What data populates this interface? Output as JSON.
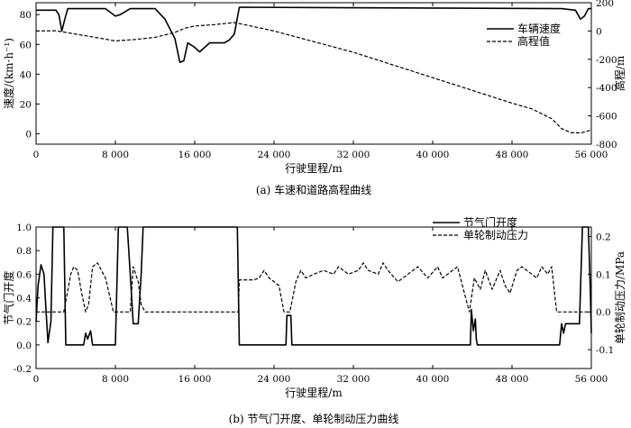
{
  "chart_data": [
    {
      "type": "line",
      "caption": "(a) 车速和道路高程曲线",
      "xlabel": "行驶里程/m",
      "ylabel": "速度/(km·h⁻¹)",
      "y2label": "高程/m",
      "xlim": [
        0,
        56000
      ],
      "ylim": [
        -7,
        88
      ],
      "y2lim": [
        -800,
        200
      ],
      "xticks": [
        0,
        8000,
        16000,
        24000,
        32000,
        40000,
        48000,
        56000
      ],
      "xtick_labels": [
        "0",
        "8 000",
        "16 000",
        "24 000",
        "32 000",
        "40 000",
        "48 000",
        "56 000"
      ],
      "yticks": [
        0,
        20,
        40,
        60,
        80
      ],
      "ytick_labels": [
        "0",
        "20",
        "40",
        "60",
        "80"
      ],
      "y2ticks": [
        200,
        0,
        -200,
        -400,
        -600,
        -800
      ],
      "y2tick_labels": [
        "200",
        "0",
        "-200",
        "-400",
        "-600",
        "-800"
      ],
      "legend_position": "top-right",
      "series": [
        {
          "name": "车辆速度",
          "axis": "left",
          "style": "solid",
          "points": [
            [
              0,
              83
            ],
            [
              2000,
              83
            ],
            [
              2300,
              80
            ],
            [
              2600,
              69
            ],
            [
              2900,
              77
            ],
            [
              3200,
              84
            ],
            [
              7000,
              84
            ],
            [
              8000,
              79
            ],
            [
              8500,
              80
            ],
            [
              9500,
              84
            ],
            [
              12000,
              84
            ],
            [
              13000,
              77
            ],
            [
              14000,
              64
            ],
            [
              14500,
              48
            ],
            [
              14900,
              49
            ],
            [
              15300,
              61
            ],
            [
              16000,
              58
            ],
            [
              16500,
              55
            ],
            [
              17000,
              58
            ],
            [
              17500,
              61
            ],
            [
              19000,
              61
            ],
            [
              19500,
              63
            ],
            [
              20000,
              67
            ],
            [
              20500,
              85
            ],
            [
              53000,
              84
            ],
            [
              54400,
              83
            ],
            [
              54900,
              77
            ],
            [
              55300,
              79
            ],
            [
              55700,
              84
            ],
            [
              56000,
              84
            ]
          ]
        },
        {
          "name": "高程值",
          "axis": "right",
          "style": "dashed",
          "points": [
            [
              0,
              0
            ],
            [
              2000,
              2
            ],
            [
              3000,
              -10
            ],
            [
              6000,
              -45
            ],
            [
              8000,
              -70
            ],
            [
              10000,
              -60
            ],
            [
              12000,
              -45
            ],
            [
              14000,
              -10
            ],
            [
              15000,
              20
            ],
            [
              16000,
              35
            ],
            [
              18000,
              45
            ],
            [
              20000,
              60
            ],
            [
              21000,
              45
            ],
            [
              24000,
              0
            ],
            [
              32000,
              -150
            ],
            [
              40000,
              -330
            ],
            [
              44000,
              -420
            ],
            [
              48000,
              -510
            ],
            [
              50000,
              -550
            ],
            [
              52000,
              -620
            ],
            [
              53000,
              -690
            ],
            [
              54000,
              -720
            ],
            [
              55000,
              -720
            ],
            [
              56000,
              -700
            ]
          ]
        }
      ]
    },
    {
      "type": "line",
      "caption": "(b) 节气门开度、单轮制动压力曲线",
      "xlabel": "行驶里程/m",
      "ylabel": "节气门开度",
      "y2label": "单轮制动压力/MPa",
      "xlim": [
        0,
        56000
      ],
      "ylim": [
        -0.2,
        1.0
      ],
      "y2lim": [
        -0.15,
        0.225
      ],
      "xticks": [
        0,
        8000,
        16000,
        24000,
        32000,
        40000,
        48000,
        56000
      ],
      "xtick_labels": [
        "0",
        "8 000",
        "16 000",
        "24 000",
        "32 000",
        "40 000",
        "48 000",
        "56 000"
      ],
      "yticks": [
        1.0,
        0.8,
        0.6,
        0.4,
        0.2,
        0.0,
        -0.2
      ],
      "ytick_labels": [
        "1.0",
        "0.8",
        "0.6",
        "0.4",
        "0.2",
        "0.0",
        "-0.2"
      ],
      "y2ticks": [
        0.2,
        0.1,
        0.0,
        -0.1
      ],
      "y2tick_labels": [
        "0.2",
        "0.1",
        "0.0",
        "-0.1"
      ],
      "legend_position": "top-right",
      "series": [
        {
          "name": "节气门开度",
          "axis": "left",
          "style": "solid",
          "points": [
            [
              0,
              0.2
            ],
            [
              200,
              0.5
            ],
            [
              500,
              0.68
            ],
            [
              800,
              0.6
            ],
            [
              1000,
              0.3
            ],
            [
              1200,
              0.02
            ],
            [
              1500,
              0.2
            ],
            [
              1700,
              1.0
            ],
            [
              2800,
              1.0
            ],
            [
              3000,
              0.0
            ],
            [
              4800,
              0.0
            ],
            [
              5000,
              0.1
            ],
            [
              5200,
              0.05
            ],
            [
              5500,
              0.12
            ],
            [
              5700,
              0.0
            ],
            [
              8000,
              0.0
            ],
            [
              8300,
              1.0
            ],
            [
              9200,
              1.0
            ],
            [
              9500,
              0.6
            ],
            [
              9800,
              0.18
            ],
            [
              10300,
              0.18
            ],
            [
              10600,
              0.6
            ],
            [
              10800,
              1.0
            ],
            [
              20300,
              1.0
            ],
            [
              20500,
              0.0
            ],
            [
              25200,
              0.0
            ],
            [
              25300,
              0.25
            ],
            [
              25700,
              0.25
            ],
            [
              25800,
              0.0
            ],
            [
              43800,
              0.0
            ],
            [
              43900,
              0.3
            ],
            [
              44100,
              0.12
            ],
            [
              44300,
              0.22
            ],
            [
              44400,
              0.05
            ],
            [
              44500,
              0.0
            ],
            [
              52800,
              0.0
            ],
            [
              53000,
              0.18
            ],
            [
              53200,
              0.1
            ],
            [
              53400,
              0.18
            ],
            [
              54800,
              0.18
            ],
            [
              55100,
              1.0
            ],
            [
              55700,
              1.0
            ],
            [
              55900,
              0.45
            ],
            [
              56000,
              0.1
            ]
          ]
        },
        {
          "name": "单轮制动压力",
          "axis": "right",
          "style": "dashed",
          "points": [
            [
              0,
              0.0
            ],
            [
              2800,
              0.0
            ],
            [
              3500,
              0.1
            ],
            [
              3800,
              0.12
            ],
            [
              4200,
              0.11
            ],
            [
              4600,
              0.05
            ],
            [
              5000,
              0.0
            ],
            [
              5300,
              0.02
            ],
            [
              5700,
              0.12
            ],
            [
              6200,
              0.13
            ],
            [
              7000,
              0.09
            ],
            [
              7800,
              0.0
            ],
            [
              9500,
              0.0
            ],
            [
              9800,
              0.12
            ],
            [
              10300,
              0.08
            ],
            [
              10600,
              0.02
            ],
            [
              11000,
              0.0
            ],
            [
              20400,
              0.0
            ],
            [
              20500,
              0.085
            ],
            [
              22000,
              0.085
            ],
            [
              22500,
              0.09
            ],
            [
              23000,
              0.11
            ],
            [
              23500,
              0.09
            ],
            [
              24500,
              0.07
            ],
            [
              25000,
              0.0
            ],
            [
              25600,
              0.0
            ],
            [
              26200,
              0.08
            ],
            [
              26700,
              0.11
            ],
            [
              27200,
              0.09
            ],
            [
              28000,
              0.1
            ],
            [
              29000,
              0.11
            ],
            [
              30000,
              0.1
            ],
            [
              30500,
              0.12
            ],
            [
              31500,
              0.1
            ],
            [
              32500,
              0.11
            ],
            [
              33000,
              0.13
            ],
            [
              33500,
              0.11
            ],
            [
              34500,
              0.1
            ],
            [
              35000,
              0.13
            ],
            [
              35500,
              0.11
            ],
            [
              36500,
              0.08
            ],
            [
              37500,
              0.1
            ],
            [
              38500,
              0.12
            ],
            [
              39500,
              0.09
            ],
            [
              40500,
              0.12
            ],
            [
              41000,
              0.09
            ],
            [
              41500,
              0.1
            ],
            [
              42500,
              0.12
            ],
            [
              43200,
              0.05
            ],
            [
              43700,
              0.0
            ],
            [
              44200,
              0.09
            ],
            [
              44800,
              0.06
            ],
            [
              45300,
              0.11
            ],
            [
              46000,
              0.06
            ],
            [
              46800,
              0.11
            ],
            [
              47300,
              0.07
            ],
            [
              47800,
              0.05
            ],
            [
              48500,
              0.11
            ],
            [
              49000,
              0.12
            ],
            [
              50000,
              0.1
            ],
            [
              50500,
              0.09
            ],
            [
              51000,
              0.12
            ],
            [
              51600,
              0.1
            ],
            [
              52000,
              0.12
            ],
            [
              52500,
              0.0
            ],
            [
              56000,
              0.0
            ]
          ]
        }
      ]
    }
  ]
}
